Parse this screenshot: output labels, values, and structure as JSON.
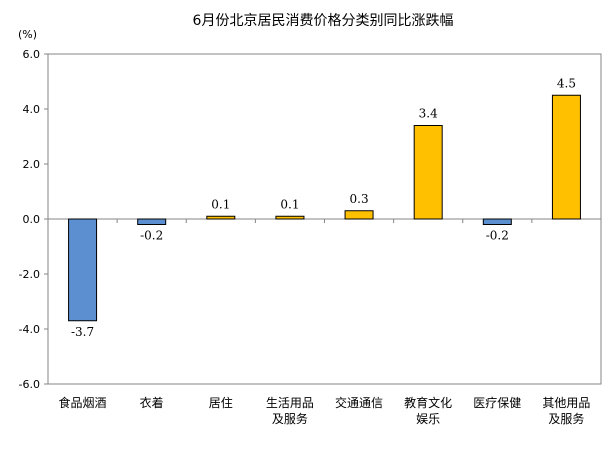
{
  "chart_data": {
    "type": "bar",
    "title": "6月份北京居民消费价格分类别同比涨跌幅",
    "unit_label": "(%)",
    "ylim": [
      -6.0,
      6.0
    ],
    "yticks": [
      "6.0",
      "4.0",
      "2.0",
      "0.0",
      "-2.0",
      "-4.0",
      "-6.0"
    ],
    "ytick_values": [
      6,
      4,
      2,
      0,
      -2,
      -4,
      -6
    ],
    "categories": [
      [
        "食品烟酒"
      ],
      [
        "衣着"
      ],
      [
        "居住"
      ],
      [
        "生活用品",
        "及服务"
      ],
      [
        "交通通信"
      ],
      [
        "教育文化",
        "娱乐"
      ],
      [
        "医疗保健"
      ],
      [
        "其他用品",
        "及服务"
      ]
    ],
    "values": [
      -3.7,
      -0.2,
      0.1,
      0.1,
      0.3,
      3.4,
      -0.2,
      4.5
    ],
    "data_labels": [
      "-3.7",
      "-0.2",
      "0.1",
      "0.1",
      "0.3",
      "3.4",
      "-0.2",
      "4.5"
    ],
    "colors": {
      "positive": "#FFC000",
      "negative": "#5B8FD0",
      "stroke": "#000000",
      "axis": "#868686"
    },
    "grid": false,
    "legend": "none"
  }
}
